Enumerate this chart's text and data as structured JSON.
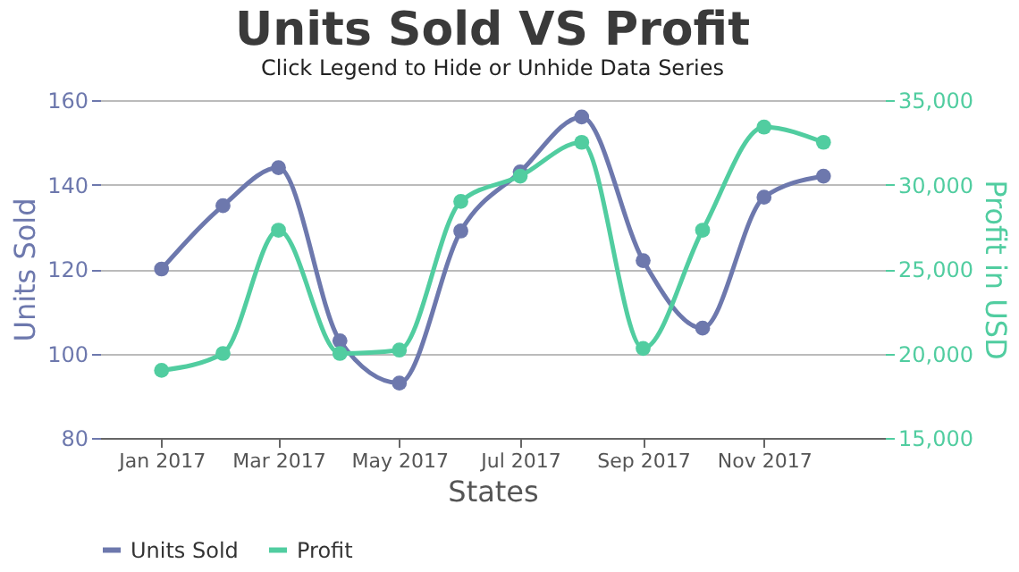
{
  "chart_data": {
    "type": "line",
    "title": "Units Sold VS Profit",
    "subtitle": "Click Legend to Hide or Unhide Data Series",
    "xlabel": "States",
    "ylabel": "Units Sold",
    "y2label": "Profit in USD",
    "x": [
      "2017-01",
      "2017-02",
      "2017-03",
      "2017-04",
      "2017-05",
      "2017-06",
      "2017-07",
      "2017-08",
      "2017-09",
      "2017-10",
      "2017-11",
      "2017-12"
    ],
    "series": [
      {
        "name": "Units Sold",
        "color": "#6d78ad",
        "values": [
          120,
          135,
          144,
          103,
          93,
          129,
          143,
          156,
          122,
          106,
          137,
          142
        ]
      },
      {
        "name": "Profit",
        "color": "#51cda0",
        "axis": "y2",
        "values": [
          19000,
          20000,
          27300,
          20000,
          20200,
          29000,
          30500,
          32500,
          20300,
          27300,
          33400,
          32500
        ]
      }
    ],
    "xlim": [
      "2016-12-01",
      "2018-01-01"
    ],
    "xticks": [
      {
        "value": "2017-01",
        "label": "Jan 2017"
      },
      {
        "value": "2017-03",
        "label": "Mar 2017"
      },
      {
        "value": "2017-05",
        "label": "May 2017"
      },
      {
        "value": "2017-07",
        "label": "Jul 2017"
      },
      {
        "value": "2017-09",
        "label": "Sep 2017"
      },
      {
        "value": "2017-11",
        "label": "Nov 2017"
      }
    ],
    "ylim": [
      80,
      160
    ],
    "yticks": [
      80,
      100,
      120,
      140,
      160
    ],
    "y2lim": [
      15000,
      35000
    ],
    "y2ticks": [
      {
        "value": 15000,
        "label": "15,000"
      },
      {
        "value": 20000,
        "label": "20,000"
      },
      {
        "value": 25000,
        "label": "25,000"
      },
      {
        "value": 30000,
        "label": "30,000"
      },
      {
        "value": 35000,
        "label": "35,000"
      }
    ],
    "grid": "y",
    "legend": "bottom",
    "marker": "circle",
    "line_style": "solid"
  }
}
